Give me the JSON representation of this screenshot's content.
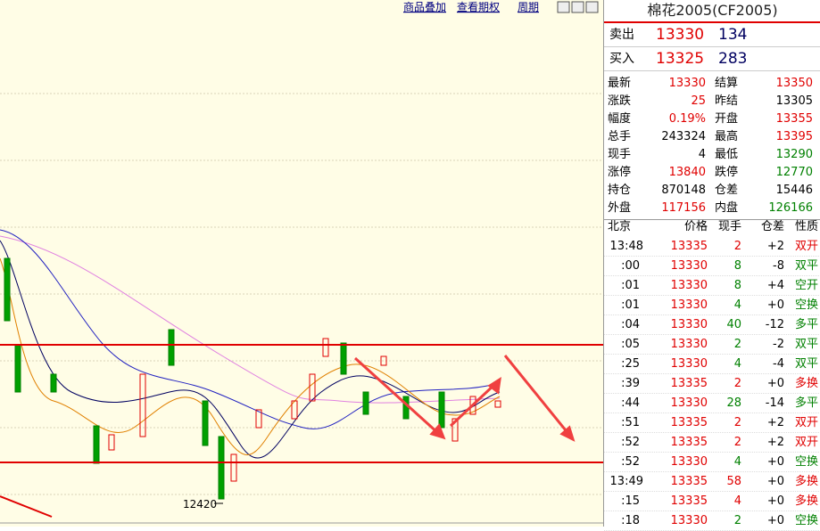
{
  "toolbar": {
    "links": [
      "商品叠加",
      "查看期权",
      "周期"
    ]
  },
  "chart": {
    "low_label": "12420"
  },
  "quote": {
    "title": "棉花2005(CF2005)",
    "ask": {
      "label": "卖出",
      "price": 13330,
      "volume": 134
    },
    "bid": {
      "label": "买入",
      "price": 13325,
      "volume": 283
    },
    "rows": [
      [
        {
          "label": "最新",
          "value": 13330,
          "color": "red"
        },
        {
          "label": "结算",
          "value": 13350,
          "color": "red"
        }
      ],
      [
        {
          "label": "涨跌",
          "value": 25,
          "color": "red"
        },
        {
          "label": "昨结",
          "value": 13305,
          "color": "black"
        }
      ],
      [
        {
          "label": "幅度",
          "value": "0.19%",
          "color": "red"
        },
        {
          "label": "开盘",
          "value": 13355,
          "color": "red"
        }
      ],
      [
        {
          "label": "总手",
          "value": 243324,
          "color": "black"
        },
        {
          "label": "最高",
          "value": 13395,
          "color": "red"
        }
      ],
      [
        {
          "label": "现手",
          "value": 4,
          "color": "black"
        },
        {
          "label": "最低",
          "value": 13290,
          "color": "green"
        }
      ],
      [
        {
          "label": "涨停",
          "value": 13840,
          "color": "red"
        },
        {
          "label": "跌停",
          "value": 12770,
          "color": "green"
        }
      ],
      [
        {
          "label": "持仓",
          "value": 870148,
          "color": "black"
        },
        {
          "label": "仓差",
          "value": 15446,
          "color": "black"
        }
      ],
      [
        {
          "label": "外盘",
          "value": 117156,
          "color": "red"
        },
        {
          "label": "内盘",
          "value": 126166,
          "color": "green"
        }
      ]
    ]
  },
  "trades": {
    "header": [
      "北京",
      "价格",
      "现手",
      "仓差",
      "性质"
    ],
    "rows": [
      {
        "time": "13:48",
        "price": 13335,
        "volume": 2,
        "change": "+2",
        "type": "双开",
        "color": "red"
      },
      {
        "time": ":00",
        "price": 13330,
        "volume": 8,
        "change": "-8",
        "type": "双平",
        "color": "green"
      },
      {
        "time": ":01",
        "price": 13330,
        "volume": 8,
        "change": "+4",
        "type": "空开",
        "color": "green"
      },
      {
        "time": ":01",
        "price": 13330,
        "volume": 4,
        "change": "+0",
        "type": "空换",
        "color": "green"
      },
      {
        "time": ":04",
        "price": 13330,
        "volume": 40,
        "change": "-12",
        "type": "多平",
        "color": "green"
      },
      {
        "time": ":05",
        "price": 13330,
        "volume": 2,
        "change": "-2",
        "type": "双平",
        "color": "green"
      },
      {
        "time": ":25",
        "price": 13330,
        "volume": 4,
        "change": "-4",
        "type": "双平",
        "color": "green"
      },
      {
        "time": ":39",
        "price": 13335,
        "volume": 2,
        "change": "+0",
        "type": "多换",
        "color": "red"
      },
      {
        "time": ":44",
        "price": 13330,
        "volume": 28,
        "change": "-14",
        "type": "多平",
        "color": "green"
      },
      {
        "time": ":51",
        "price": 13335,
        "volume": 2,
        "change": "+2",
        "type": "双开",
        "color": "red"
      },
      {
        "time": ":52",
        "price": 13335,
        "volume": 2,
        "change": "+2",
        "type": "双开",
        "color": "red"
      },
      {
        "time": ":52",
        "price": 13330,
        "volume": 4,
        "change": "+0",
        "type": "空换",
        "color": "green"
      },
      {
        "time": "13:49",
        "price": 13335,
        "volume": 58,
        "change": "+0",
        "type": "多换",
        "color": "red"
      },
      {
        "time": ":15",
        "price": 13335,
        "volume": 4,
        "change": "+0",
        "type": "多换",
        "color": "red"
      },
      {
        "time": ":18",
        "price": 13330,
        "volume": 2,
        "change": "+0",
        "type": "空换",
        "color": "green"
      }
    ]
  }
}
